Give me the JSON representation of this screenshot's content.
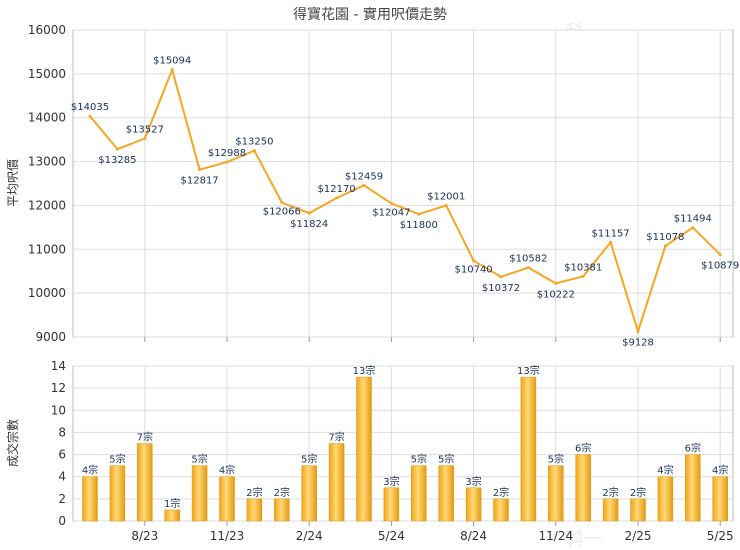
{
  "chart_data": [
    {
      "type": "line",
      "title": "得寶花園 - 實用呎價走勢",
      "ylabel": "平均呎價",
      "ylim": [
        9000,
        16000
      ],
      "yticks": [
        9000,
        10000,
        11000,
        12000,
        13000,
        14000,
        15000,
        16000
      ],
      "color": "#f5a623",
      "grid": true,
      "x_tick_labels": [
        "8/23",
        "11/23",
        "2/24",
        "5/24",
        "8/24",
        "11/24",
        "2/25",
        "5/25"
      ],
      "values": [
        14035,
        13285,
        13527,
        15094,
        12817,
        12988,
        13250,
        12066,
        11824,
        12170,
        12459,
        12047,
        11800,
        12001,
        10740,
        10372,
        10582,
        10222,
        10381,
        11157,
        9128,
        11078,
        11494,
        10879
      ],
      "labels": [
        "$14035",
        "$13285",
        "$13527",
        "$15094",
        "$12817",
        "$12988",
        "$13250",
        "$12066",
        "$11824",
        "$12170",
        "$12459",
        "$12047",
        "$11800",
        "$12001",
        "$10740",
        "$10372",
        "$10582",
        "$10222",
        "$10381",
        "$11157",
        "$9128",
        "$11078",
        "$11494",
        "$10879"
      ]
    },
    {
      "type": "bar",
      "ylabel": "成交宗數",
      "ylim": [
        0,
        14
      ],
      "yticks": [
        0,
        2,
        4,
        6,
        8,
        10,
        12,
        14
      ],
      "color": "#f5a623",
      "grid": true,
      "x_tick_labels": [
        "8/23",
        "11/23",
        "2/24",
        "5/24",
        "8/24",
        "11/24",
        "2/25",
        "5/25"
      ],
      "values": [
        4,
        5,
        7,
        1,
        5,
        4,
        2,
        2,
        5,
        7,
        13,
        3,
        5,
        5,
        3,
        2,
        13,
        5,
        6,
        2,
        2,
        4,
        6,
        4
      ],
      "labels": [
        "4宗",
        "5宗",
        "7宗",
        "1宗",
        "5宗",
        "4宗",
        "2宗",
        "2宗",
        "5宗",
        "7宗",
        "13宗",
        "3宗",
        "5宗",
        "5宗",
        "3宗",
        "2宗",
        "13宗",
        "5宗",
        "6宗",
        "2宗",
        "2宗",
        "4宗",
        "6宗",
        "4宗"
      ]
    }
  ],
  "watermark": "科一"
}
